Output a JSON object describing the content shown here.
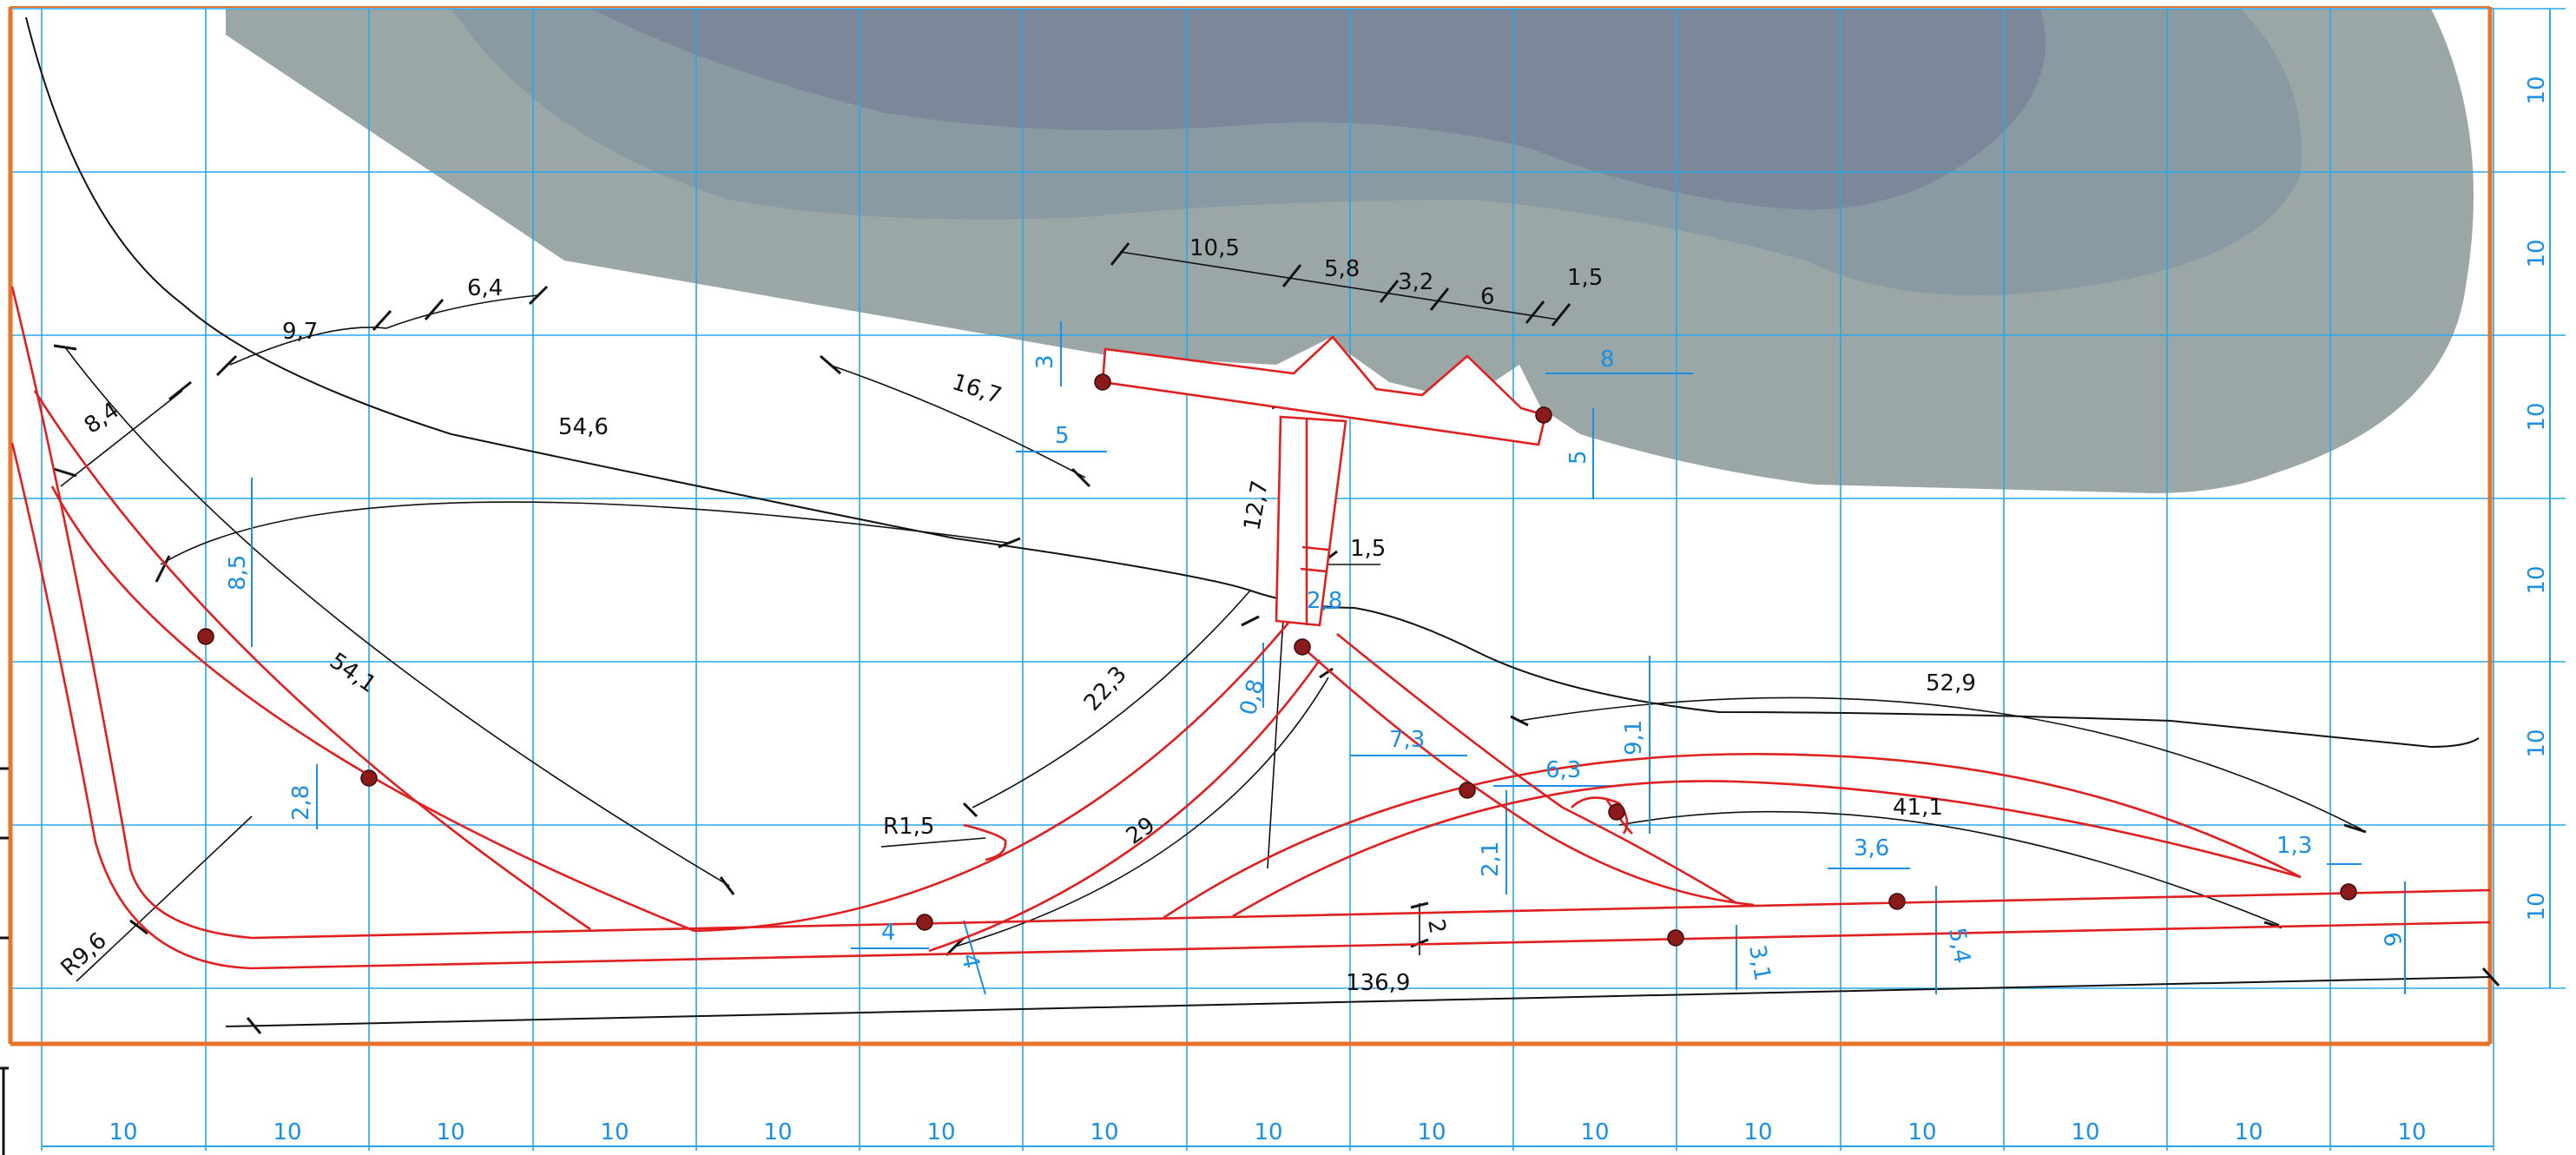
{
  "colors": {
    "frame": "#e8732a",
    "grid": "#26a8e8",
    "track": "#e02020",
    "black_dim": "#111111",
    "blue_dim": "#1a8fe3",
    "water_outer": "#9aa7a6",
    "water_mid": "#8a9aa3",
    "water_inner": "#7c889a",
    "node_fill": "#8b1a1a"
  },
  "grid": {
    "bottom_labels": [
      "10",
      "10",
      "10",
      "10",
      "10",
      "10",
      "10",
      "10",
      "10",
      "10",
      "10",
      "10",
      "10",
      "10",
      "10"
    ],
    "right_labels": [
      "10",
      "10",
      "10",
      "10",
      "10",
      "10"
    ]
  },
  "dimensions_black": {
    "d_10_5": "10,5",
    "d_5_8": "5,8",
    "d_3_2": "3,2",
    "d_6": "6",
    "d_1_5_top": "1,5",
    "d_6_4": "6,4",
    "d_9_7": "9,7",
    "d_8_4": "8,4",
    "d_54_6": "54,6",
    "d_16_7": "16,7",
    "d_12_7": "12,7",
    "d_1_5_mid": "1,5",
    "d_54_1": "54,1",
    "d_22_3": "22,3",
    "d_R1_5": "R1,5",
    "d_29": "29",
    "d_R9_6": "R9,6",
    "d_52_9": "52,9",
    "d_41_1": "41,1",
    "d_2": "2",
    "d_136_9": "136,9"
  },
  "dimensions_blue": {
    "b_3": "3",
    "b_5_left": "5",
    "b_8": "8",
    "b_5_right": "5",
    "b_8_5": "8,5",
    "b_2_8_left": "2,8",
    "b_2_8_mid": "2,8",
    "b_0_8": "0,8",
    "b_7_3": "7,3",
    "b_6_3": "6,3",
    "b_9_1": "9,1",
    "b_2_1": "2,1",
    "b_4_left": "4",
    "b_4_right": "4",
    "b_3_6": "3,6",
    "b_5_4": "5,4",
    "b_3_1": "3,1",
    "b_1_3": "1,3",
    "b_6": "6"
  }
}
